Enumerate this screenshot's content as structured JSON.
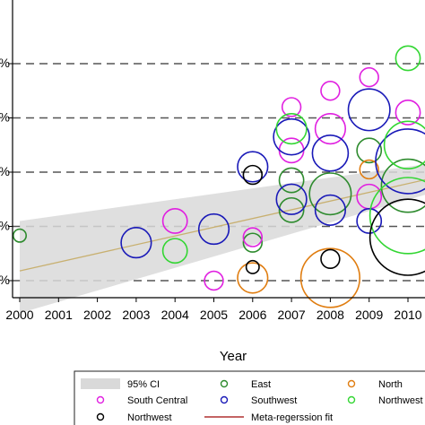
{
  "chart_data": {
    "type": "scatter",
    "title": "",
    "xlabel": "Year",
    "ylabel": "",
    "xlim": [
      2000,
      2011
    ],
    "ylim": [
      0,
      5
    ],
    "x_ticks": [
      "2000",
      "2001",
      "2002",
      "2003",
      "2004",
      "2005",
      "2006",
      "2007",
      "2008",
      "2009",
      "2010"
    ],
    "y_ticks": [
      0.5,
      1.5,
      2.5,
      3.5,
      4.5
    ],
    "y_tick_labels": [
      "%",
      "%",
      "%",
      "%",
      "%"
    ],
    "gridlines": "horizontal dashed",
    "legend_position": "bottom",
    "legend": [
      {
        "label": "95% CI",
        "kind": "band",
        "color": "#d9d9d9"
      },
      {
        "label": "East",
        "kind": "circle",
        "color": "#2e8b2e"
      },
      {
        "label": "North",
        "kind": "circle",
        "color": "#e07d10"
      },
      {
        "label": "South Central",
        "kind": "circle",
        "color": "#e020e0"
      },
      {
        "label": "Southwest",
        "kind": "circle",
        "color": "#1a1ab8"
      },
      {
        "label": "Northwest",
        "kind": "circle",
        "color": "#33d633"
      },
      {
        "label": "Northwest",
        "kind": "circle",
        "color": "#000000"
      },
      {
        "label": "Meta-regerssion fit",
        "kind": "line",
        "color": "#b03030"
      }
    ],
    "fit": {
      "x": [
        2000,
        2011
      ],
      "y": [
        0.68,
        2.45
      ],
      "color": "#c8b070"
    },
    "ci_band": {
      "x": [
        2000,
        2011
      ],
      "lower": [
        -0.1,
        2.2
      ],
      "upper": [
        1.6,
        2.7
      ]
    },
    "series": [
      {
        "name": "East",
        "color": "#2e8b2e",
        "points": [
          {
            "x": 2000,
            "y": 1.33,
            "w": 1
          },
          {
            "x": 2006,
            "y": 1.2,
            "w": 2
          },
          {
            "x": 2007,
            "y": 1.8,
            "w": 3
          },
          {
            "x": 2007,
            "y": 2.35,
            "w": 3
          },
          {
            "x": 2008,
            "y": 2.1,
            "w": 6
          },
          {
            "x": 2009,
            "y": 2.9,
            "w": 3
          },
          {
            "x": 2010,
            "y": 2.25,
            "w": 8
          }
        ]
      },
      {
        "name": "North",
        "color": "#e07d10",
        "points": [
          {
            "x": 2006,
            "y": 0.55,
            "w": 4
          },
          {
            "x": 2008,
            "y": 0.55,
            "w": 9
          },
          {
            "x": 2009,
            "y": 2.55,
            "w": 2
          }
        ]
      },
      {
        "name": "South Central",
        "color": "#e020e0",
        "points": [
          {
            "x": 2004,
            "y": 1.6,
            "w": 3
          },
          {
            "x": 2005,
            "y": 0.5,
            "w": 2
          },
          {
            "x": 2006,
            "y": 1.3,
            "w": 2
          },
          {
            "x": 2007,
            "y": 3.7,
            "w": 2
          },
          {
            "x": 2007,
            "y": 2.9,
            "w": 3
          },
          {
            "x": 2008,
            "y": 4.0,
            "w": 2
          },
          {
            "x": 2008,
            "y": 3.3,
            "w": 4
          },
          {
            "x": 2009,
            "y": 4.25,
            "w": 2
          },
          {
            "x": 2009,
            "y": 2.05,
            "w": 3
          },
          {
            "x": 2010,
            "y": 3.6,
            "w": 3
          }
        ]
      },
      {
        "name": "Southwest",
        "color": "#1a1ab8",
        "points": [
          {
            "x": 2003,
            "y": 1.2,
            "w": 4
          },
          {
            "x": 2005,
            "y": 1.45,
            "w": 4
          },
          {
            "x": 2006,
            "y": 2.6,
            "w": 4
          },
          {
            "x": 2007,
            "y": 3.15,
            "w": 5
          },
          {
            "x": 2007,
            "y": 2.0,
            "w": 4
          },
          {
            "x": 2008,
            "y": 2.85,
            "w": 5
          },
          {
            "x": 2008,
            "y": 1.8,
            "w": 4
          },
          {
            "x": 2009,
            "y": 3.65,
            "w": 6
          },
          {
            "x": 2009,
            "y": 1.6,
            "w": 3
          },
          {
            "x": 2010,
            "y": 2.7,
            "w": 10
          }
        ]
      },
      {
        "name": "Northwest",
        "color": "#33d633",
        "points": [
          {
            "x": 2004,
            "y": 1.05,
            "w": 3
          },
          {
            "x": 2007,
            "y": 3.3,
            "w": 4
          },
          {
            "x": 2010,
            "y": 4.6,
            "w": 3
          },
          {
            "x": 2010,
            "y": 3.0,
            "w": 7
          },
          {
            "x": 2010,
            "y": 1.7,
            "w": 12
          }
        ]
      },
      {
        "name": "Northwest",
        "color": "#000000",
        "points": [
          {
            "x": 2006,
            "y": 2.45,
            "w": 2
          },
          {
            "x": 2006,
            "y": 0.75,
            "w": 1
          },
          {
            "x": 2008,
            "y": 0.9,
            "w": 2
          },
          {
            "x": 2010,
            "y": 1.3,
            "w": 12
          }
        ]
      }
    ]
  }
}
